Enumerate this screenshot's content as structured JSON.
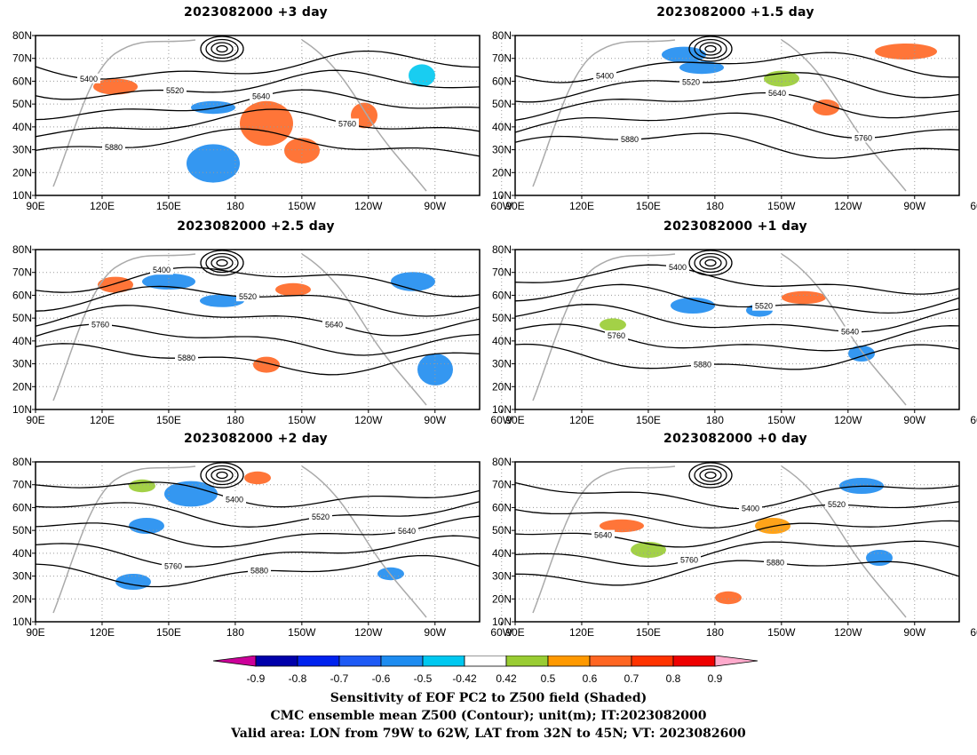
{
  "chart_data": {
    "type": "map",
    "panels": [
      {
        "title": "2023082000 +3 day"
      },
      {
        "title": "2023082000 +1.5 day"
      },
      {
        "title": "2023082000 +2.5 day"
      },
      {
        "title": "2023082000 +1 day"
      },
      {
        "title": "2023082000 +2 day"
      },
      {
        "title": "2023082000 +0 day"
      }
    ],
    "lat_ticks": [
      "10N",
      "20N",
      "30N",
      "40N",
      "50N",
      "60N",
      "70N",
      "80N"
    ],
    "lon_ticks": [
      "90E",
      "120E",
      "150E",
      "180",
      "150W",
      "120W",
      "90W",
      "60W"
    ],
    "lat_range": [
      10,
      80
    ],
    "lon_range": [
      90,
      290
    ],
    "colorbar": {
      "levels": [
        "-0.9",
        "-0.8",
        "-0.7",
        "-0.6",
        "-0.5",
        "-0.42",
        "0.42",
        "0.5",
        "0.6",
        "0.7",
        "0.8",
        "0.9"
      ],
      "colors": [
        "#0000aa",
        "#0022ee",
        "#1e5af5",
        "#1e8cf0",
        "#00c8f0",
        "#ffffff",
        "#99cc33",
        "#ff9900",
        "#ff6622",
        "#ff3300",
        "#ee0000"
      ],
      "under_color": "#cc0099",
      "over_color": "#ffaacc"
    },
    "contour_levels": [
      "5400",
      "5520",
      "5640",
      "5760",
      "5880"
    ],
    "captions": [
      "Sensitivity of EOF PC2 to Z500 field (Shaded)",
      "CMC ensemble mean Z500 (Contour); unit(m); IT:2023082000",
      "Valid area: LON from 79W to 62W, LAT from 32N to 45N; VT: 2023082600"
    ]
  }
}
